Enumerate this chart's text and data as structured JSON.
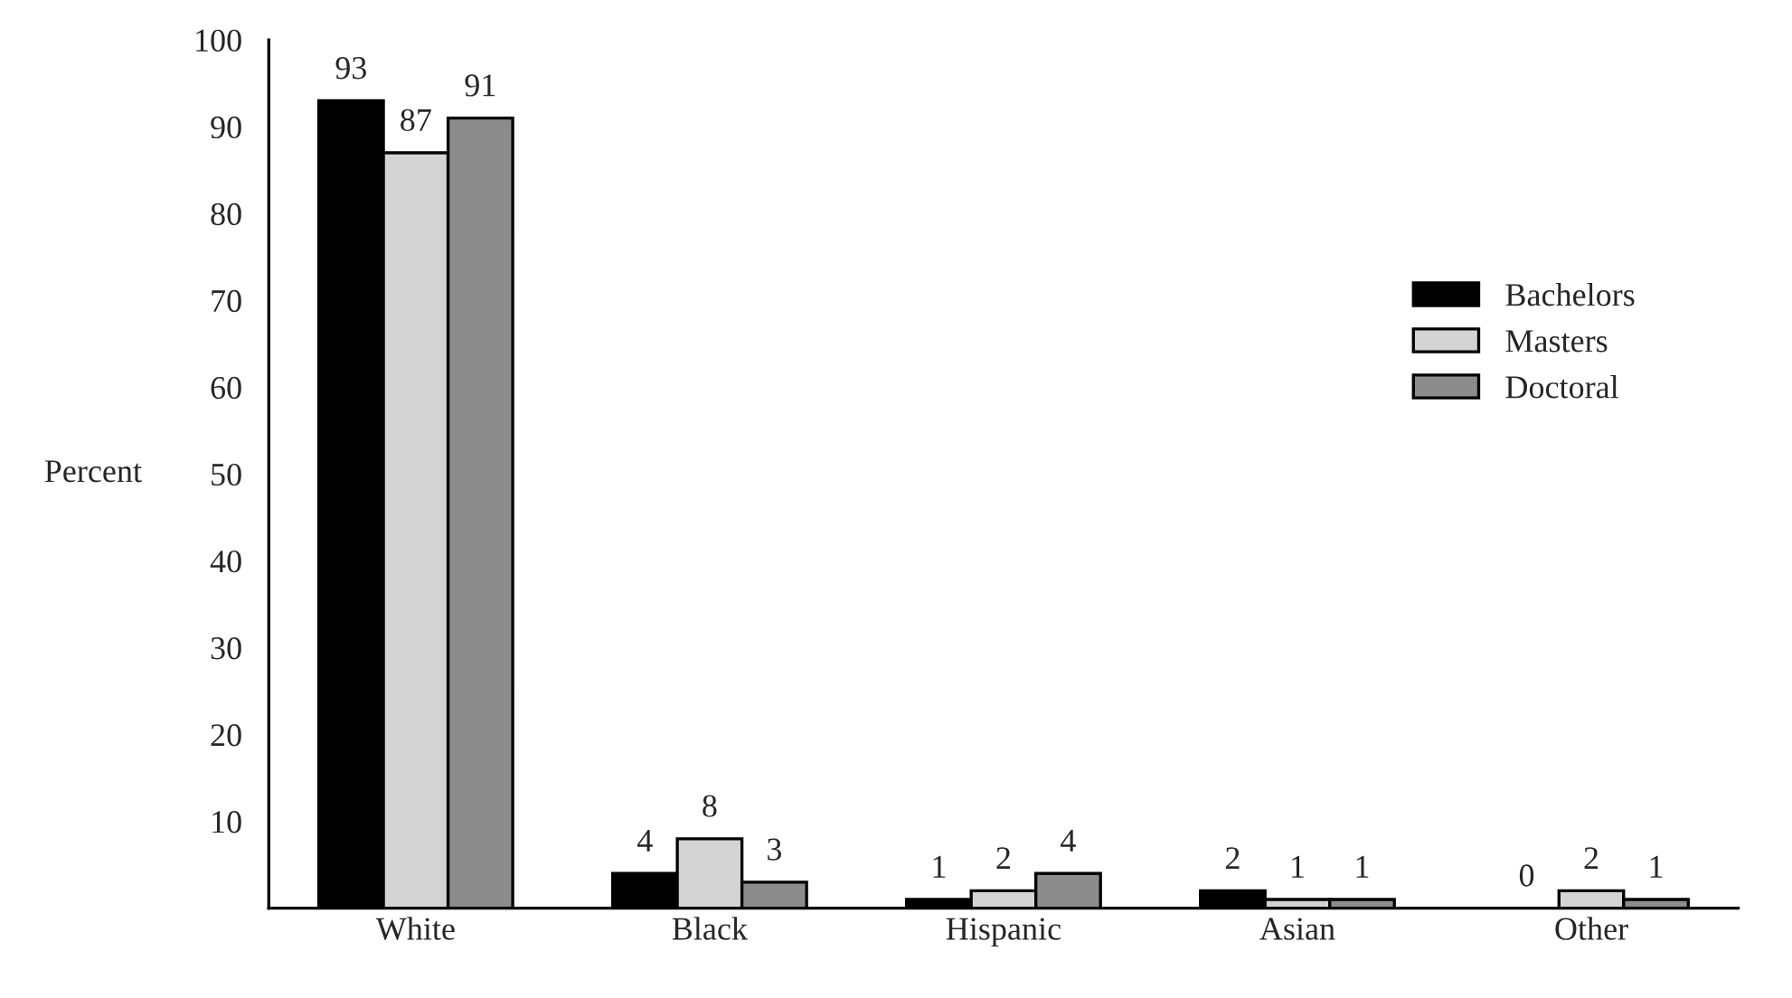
{
  "chart_data": {
    "type": "bar",
    "ylabel": "Percent",
    "categories": [
      "White",
      "Black",
      "Hispanic",
      "Asian",
      "Other"
    ],
    "series": [
      {
        "name": "Bachelors",
        "color": "#000000",
        "values": [
          93,
          4,
          1,
          2,
          0
        ]
      },
      {
        "name": "Masters",
        "color": "#d4d4d4",
        "values": [
          87,
          8,
          2,
          1,
          2
        ]
      },
      {
        "name": "Doctoral",
        "color": "#8c8c8c",
        "values": [
          91,
          3,
          4,
          1,
          1
        ]
      }
    ],
    "ylim": [
      0,
      100
    ],
    "yticks": [
      10,
      20,
      30,
      40,
      50,
      60,
      70,
      80,
      90,
      100
    ],
    "data_labels": true,
    "legend": "right",
    "grid": false
  }
}
